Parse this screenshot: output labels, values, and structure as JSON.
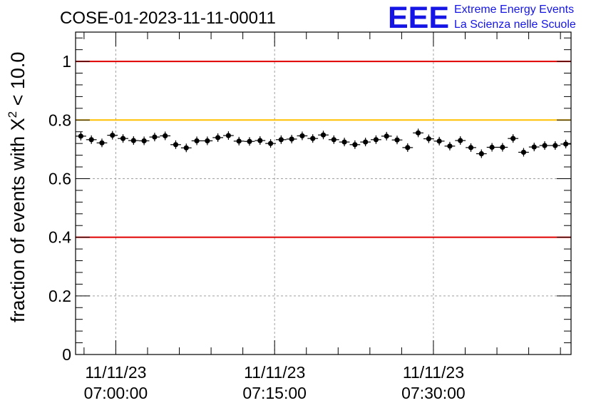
{
  "chart_data": {
    "type": "scatter",
    "title": "COSE-01-2023-11-11-00011",
    "ylabel_prefix": "fraction of events with ",
    "ylabel_symbol": "X",
    "ylabel_exponent": "2",
    "ylabel_suffix": " < 10.0",
    "xlabel": "",
    "ylim": [
      0,
      1.1
    ],
    "yticks": [
      "0",
      "0.2",
      "0.4",
      "0.6",
      "0.8",
      "1"
    ],
    "ytick_values": [
      0,
      0.2,
      0.4,
      0.6,
      0.8,
      1.0
    ],
    "grid": true,
    "xrange_minutes": [
      -3.8,
      43.0
    ],
    "xticks": [
      {
        "date": "11/11/23",
        "time": "07:00:00",
        "t": 0
      },
      {
        "date": "11/11/23",
        "time": "07:15:00",
        "t": 15
      },
      {
        "date": "11/11/23",
        "time": "07:30:00",
        "t": 30
      }
    ],
    "hlines": [
      {
        "y": 1.0,
        "color": "#e00000"
      },
      {
        "y": 0.8,
        "color": "#ffc000"
      },
      {
        "y": 0.4,
        "color": "#e00000"
      }
    ],
    "marker_color": "#000000",
    "series": [
      {
        "values": [
          0.745,
          0.733,
          0.722,
          0.748,
          0.737,
          0.73,
          0.729,
          0.742,
          0.746,
          0.716,
          0.705,
          0.729,
          0.729,
          0.74,
          0.747,
          0.728,
          0.727,
          0.73,
          0.72,
          0.733,
          0.735,
          0.746,
          0.737,
          0.749,
          0.733,
          0.725,
          0.716,
          0.725,
          0.733,
          0.745,
          0.732,
          0.706,
          0.756,
          0.736,
          0.728,
          0.711,
          0.73,
          0.706,
          0.685,
          0.707,
          0.707,
          0.737,
          0.69,
          0.708,
          0.713,
          0.713,
          0.718
        ]
      }
    ]
  },
  "logo": {
    "mark": "EEE",
    "line1": "Extreme Energy Events",
    "line2": "La Scienza nelle Scuole",
    "color": "#1515e6"
  }
}
